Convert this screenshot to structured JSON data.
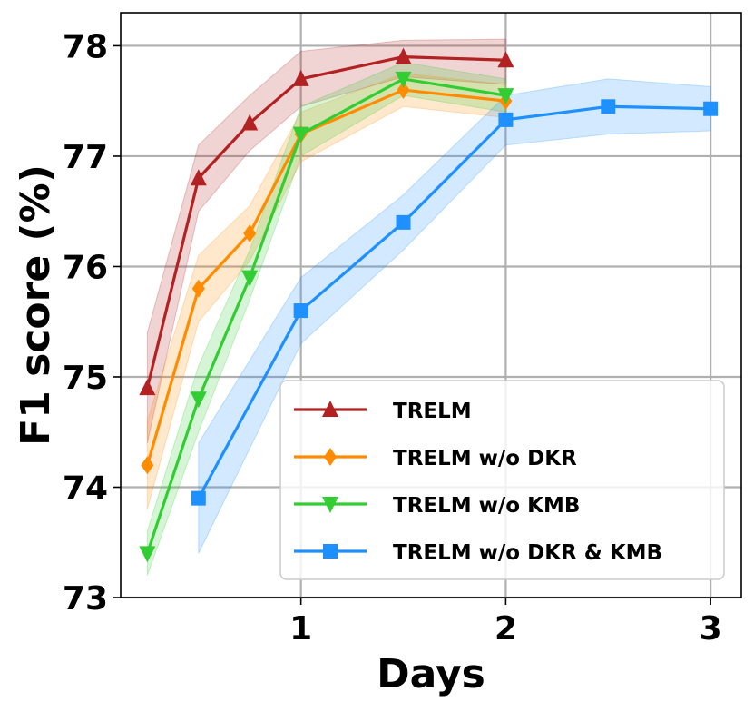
{
  "chart_data": {
    "type": "line",
    "title": "",
    "xlabel": "Days",
    "ylabel": "F1 score (%)",
    "xlim": [
      0.12,
      3.15
    ],
    "ylim": [
      73,
      78.3
    ],
    "xticks": [
      1,
      2,
      3
    ],
    "xtick_labels": [
      "1",
      "2",
      "3"
    ],
    "yticks": [
      73,
      74,
      75,
      76,
      77,
      78
    ],
    "ytick_labels": [
      "73",
      "74",
      "75",
      "76",
      "77",
      "78"
    ],
    "grid": true,
    "legend_position": "lower-right",
    "series": [
      {
        "name": "TRELM",
        "color": "#b22222",
        "marker": "triangle-up",
        "x": [
          0.25,
          0.5,
          0.75,
          1,
          1.5,
          2
        ],
        "y": [
          74.9,
          76.8,
          77.3,
          77.7,
          77.9,
          77.87
        ],
        "band_low": [
          74.4,
          76.5,
          77.05,
          77.45,
          77.72,
          77.65
        ],
        "band_high": [
          75.4,
          77.1,
          77.55,
          77.95,
          78.05,
          78.06
        ]
      },
      {
        "name": "TRELM w/o DKR",
        "color": "#ff8c00",
        "marker": "diamond",
        "x": [
          0.25,
          0.5,
          0.75,
          1,
          1.5,
          2
        ],
        "y": [
          74.2,
          75.8,
          76.3,
          77.2,
          77.6,
          77.5
        ],
        "band_low": [
          73.8,
          75.5,
          76.05,
          76.95,
          77.45,
          77.35
        ],
        "band_high": [
          74.6,
          76.1,
          76.55,
          77.4,
          77.75,
          77.65
        ]
      },
      {
        "name": "TRELM w/o KMB",
        "color": "#32cd32",
        "marker": "triangle-down",
        "x": [
          0.25,
          0.5,
          0.75,
          1,
          1.5,
          2
        ],
        "y": [
          73.4,
          74.8,
          75.9,
          77.2,
          77.7,
          77.55
        ],
        "band_low": [
          73.2,
          74.5,
          75.7,
          77.0,
          77.55,
          77.4
        ],
        "band_high": [
          73.6,
          75.1,
          76.15,
          77.45,
          77.85,
          77.7
        ]
      },
      {
        "name": "TRELM w/o DKR & KMB",
        "color": "#1e90ff",
        "marker": "square",
        "x": [
          0.5,
          1,
          1.5,
          2,
          2.5,
          3
        ],
        "y": [
          73.9,
          75.6,
          76.4,
          77.33,
          77.45,
          77.43
        ],
        "band_low": [
          73.4,
          75.3,
          76.15,
          77.1,
          77.2,
          77.23
        ],
        "band_high": [
          74.4,
          75.9,
          76.65,
          77.55,
          77.7,
          77.63
        ]
      }
    ]
  }
}
